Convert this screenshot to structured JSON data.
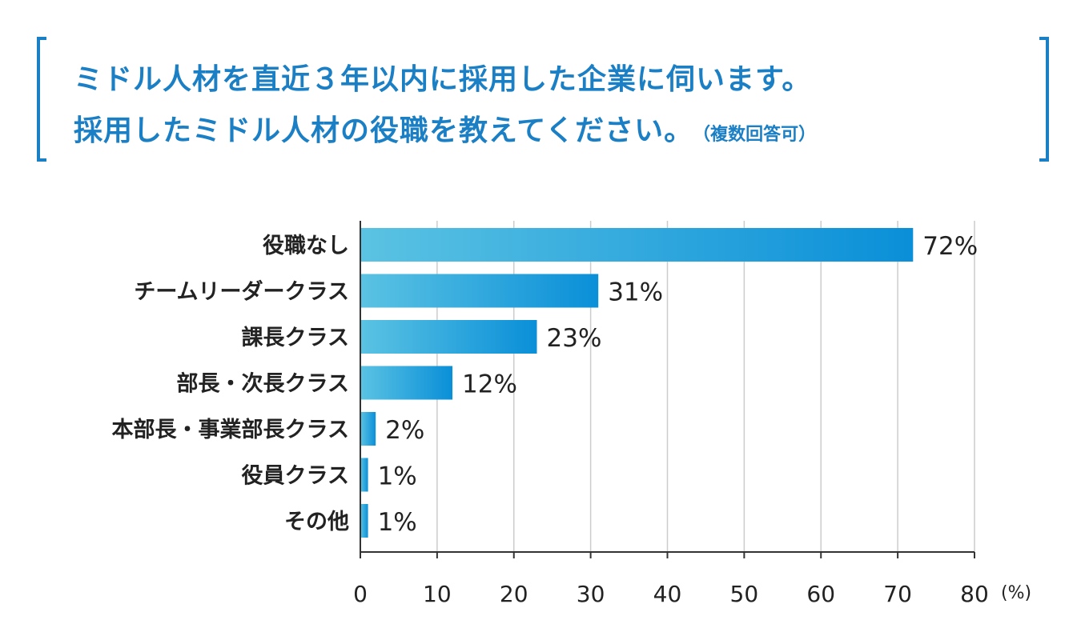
{
  "title": {
    "line1": "ミドル人材を直近３年以内に採用した企業に伺います。",
    "line2": "採用したミドル人材の役職を教えてください。",
    "note": "（複数回答可）"
  },
  "colors": {
    "accent": "#1a7fc4",
    "bar_start": "#5bc3e3",
    "bar_end": "#0a8fd8",
    "grid": "#cccccc",
    "axis": "#333333",
    "text": "#222222"
  },
  "chart_data": {
    "type": "bar",
    "orientation": "horizontal",
    "categories": [
      "役職なし",
      "チームリーダークラス",
      "課長クラス",
      "部長・次長クラス",
      "本部長・事業部長クラス",
      "役員クラス",
      "その他"
    ],
    "values": [
      72,
      31,
      23,
      12,
      2,
      1,
      1
    ],
    "value_labels": [
      "72%",
      "31%",
      "23%",
      "12%",
      "2%",
      "1%",
      "1%"
    ],
    "xticks": [
      0,
      10,
      20,
      30,
      40,
      50,
      60,
      70,
      80
    ],
    "xlim": [
      0,
      80
    ],
    "xunit": "(%)",
    "grid": true,
    "legend": false
  }
}
